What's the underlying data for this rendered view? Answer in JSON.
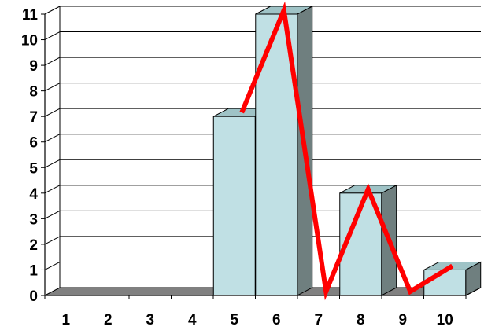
{
  "chart_data": {
    "type": "bar",
    "categories": [
      "1",
      "2",
      "3",
      "4",
      "5",
      "6",
      "7",
      "8",
      "9",
      "10"
    ],
    "values": [
      0,
      0,
      0,
      0,
      7,
      11,
      0,
      4,
      0,
      1
    ],
    "line_values": [
      0,
      0,
      0,
      0,
      7,
      11,
      0,
      4,
      0,
      1
    ],
    "y_ticks": [
      "0",
      "1",
      "2",
      "3",
      "4",
      "5",
      "6",
      "7",
      "8",
      "9",
      "10",
      "11"
    ],
    "ylim": [
      0,
      11
    ],
    "grid": true,
    "legend": "none",
    "style": "3d",
    "colors": {
      "bar_front": "#c0e0e4",
      "bar_side": "#6f7f7f",
      "bar_top": "#9fc3c6",
      "floor": "#808080",
      "line": "#ff0000",
      "grid": "#000000"
    }
  }
}
